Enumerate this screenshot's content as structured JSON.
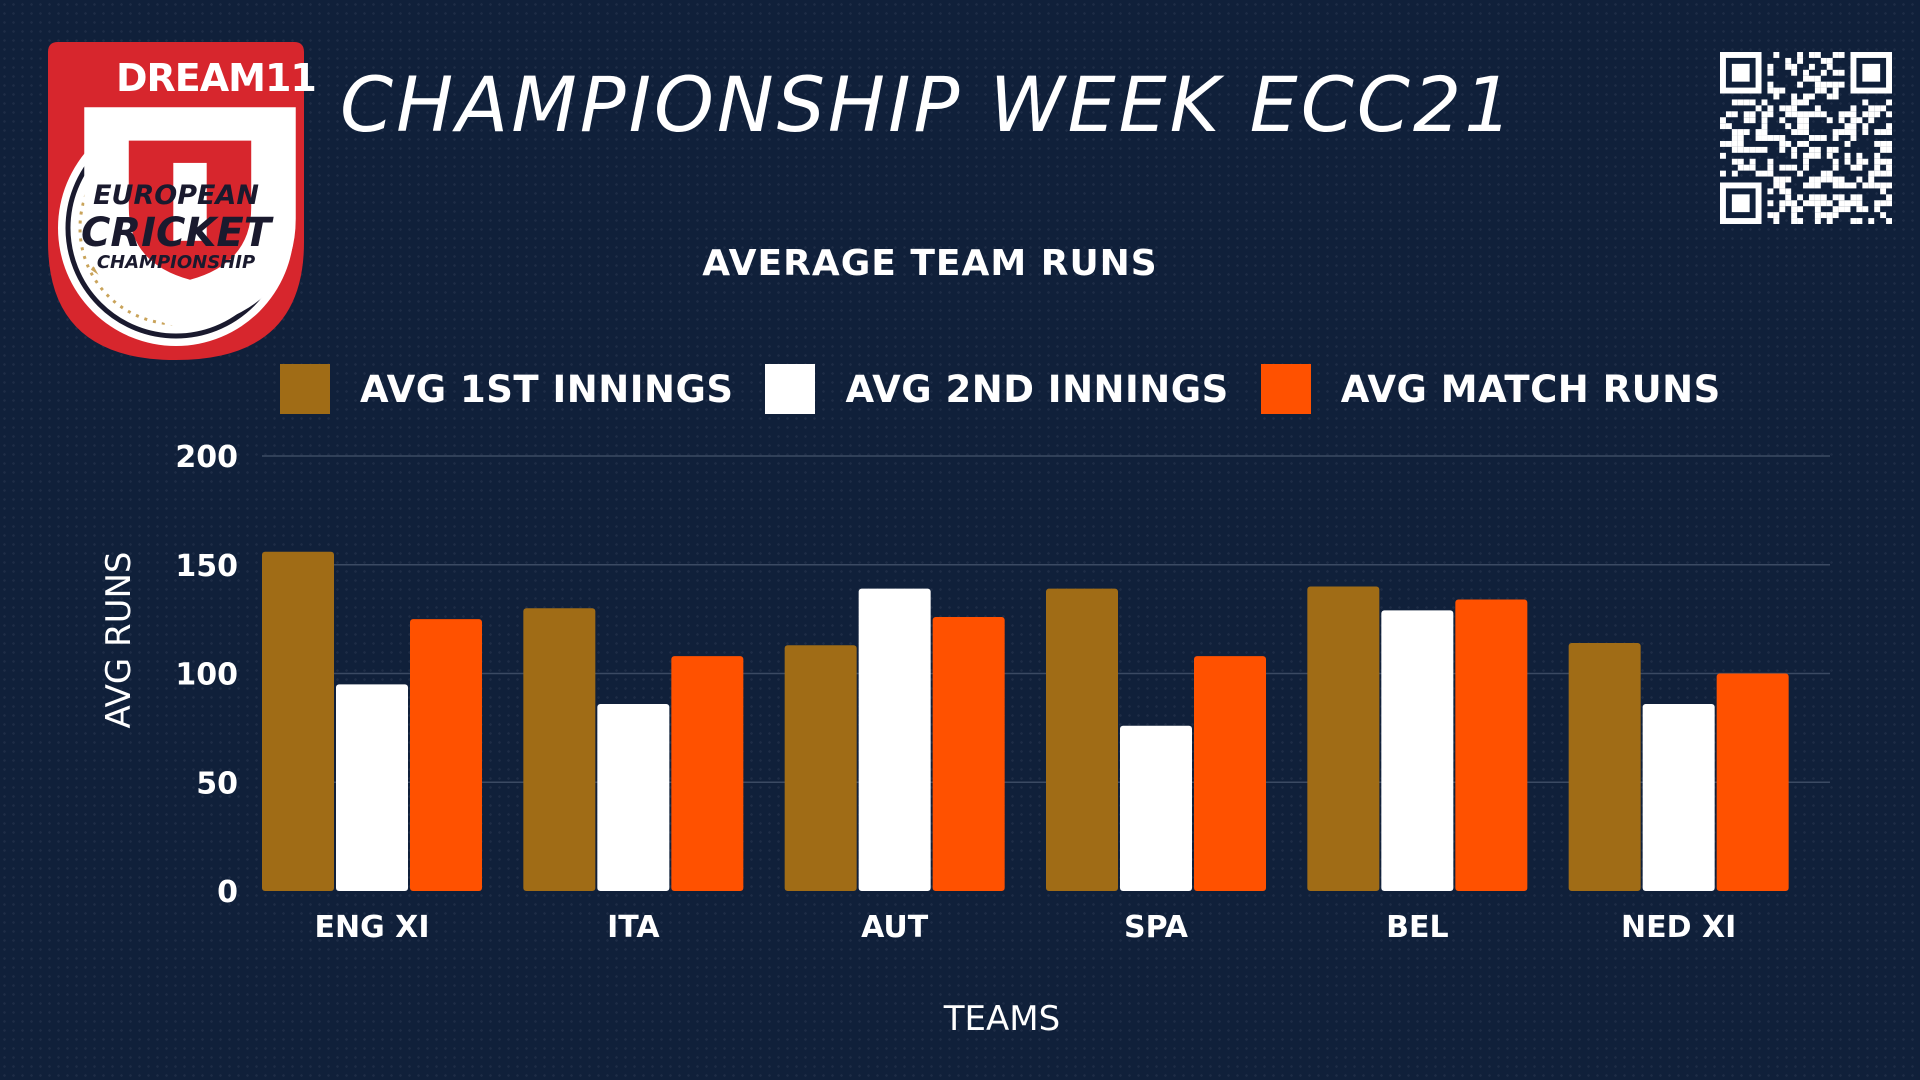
{
  "header": {
    "title": "CHAMPIONSHIP WEEK ECC21",
    "logo": {
      "brand": "DREAM11",
      "line1": "EUROPEAN",
      "line2": "CRICKET",
      "line3": "CHAMPIONSHIP"
    },
    "qr_icon": "qr-code-icon"
  },
  "colors": {
    "background": "#10203a",
    "series1": "#a06c16",
    "series2": "#ffffff",
    "series3": "#ff5100",
    "logo_red": "#d7262d",
    "grid": "#3b4a63"
  },
  "chart_data": {
    "type": "bar",
    "title": "AVERAGE TEAM RUNS",
    "xlabel": "TEAMS",
    "ylabel": "AVG RUNS",
    "ylim": [
      0,
      200
    ],
    "yticks": [
      0,
      50,
      100,
      150,
      200
    ],
    "grid": true,
    "legend_position": "top",
    "categories": [
      "ENG XI",
      "ITA",
      "AUT",
      "SPA",
      "BEL",
      "NED XI"
    ],
    "series": [
      {
        "name": "AVG 1ST INNINGS",
        "color": "#a06c16",
        "values": [
          156,
          130,
          113,
          139,
          140,
          114
        ]
      },
      {
        "name": "AVG 2ND INNINGS",
        "color": "#ffffff",
        "values": [
          95,
          86,
          139,
          76,
          129,
          86
        ]
      },
      {
        "name": "AVG MATCH RUNS",
        "color": "#ff5100",
        "values": [
          125,
          108,
          126,
          108,
          134,
          100
        ]
      }
    ]
  }
}
